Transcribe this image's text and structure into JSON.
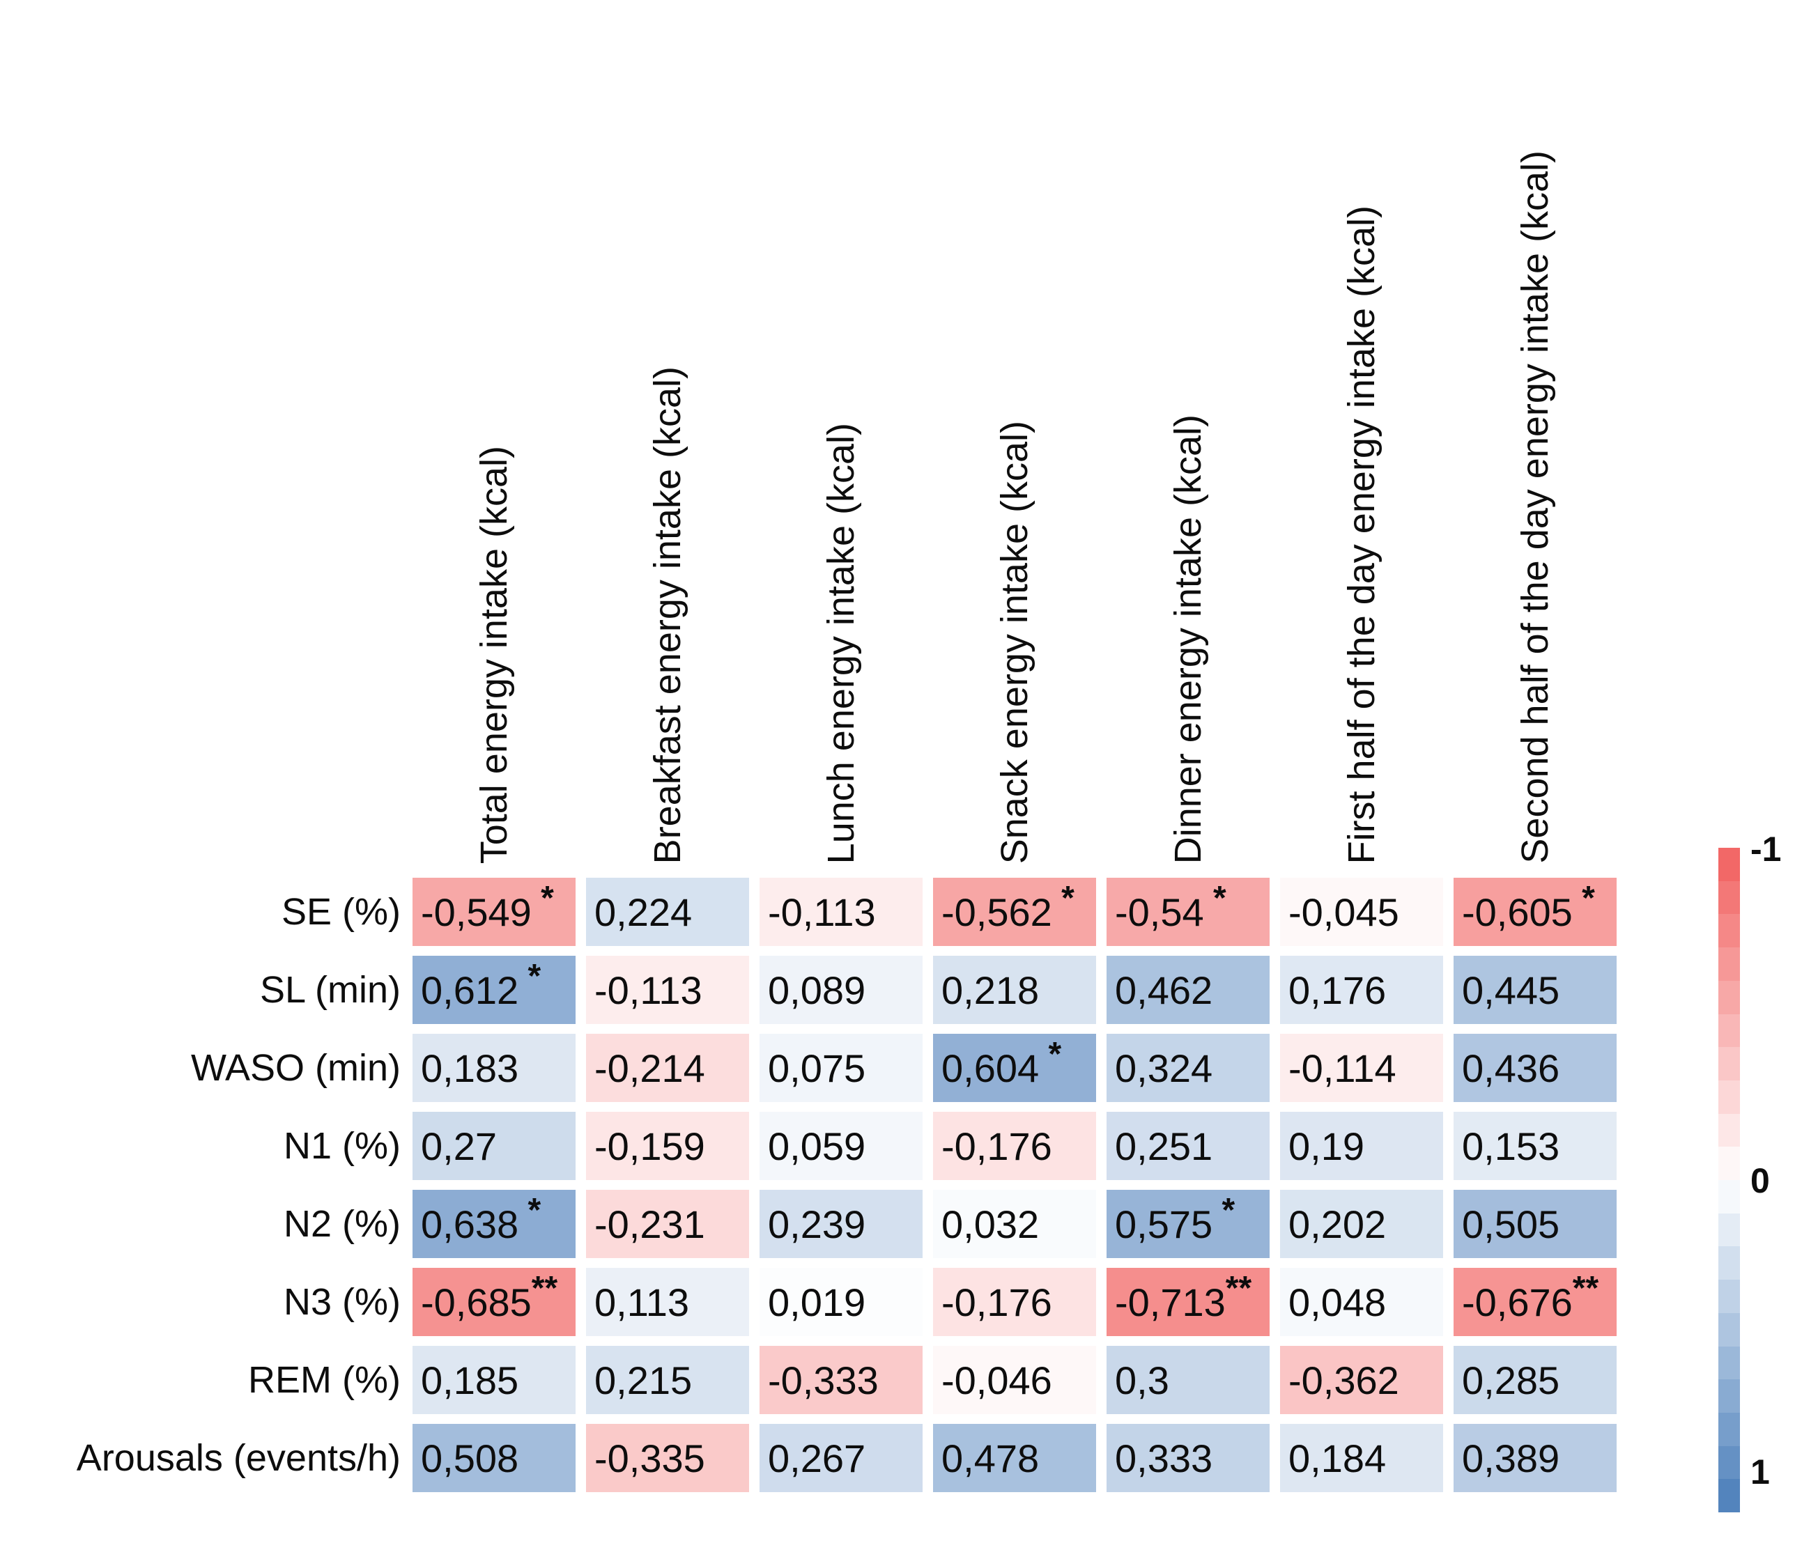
{
  "chart_data": {
    "type": "heatmap",
    "description": "Correlation matrix between sleep parameters (rows) and energy intake variables (columns); red = negative correlation, blue = positive correlation; * and ** mark significant coefficients; decimal comma formatting",
    "columns": [
      "Total energy intake (kcal)",
      "Breakfast energy intake (kcal)",
      "Lunch energy intake (kcal)",
      "Snack energy intake (kcal)",
      "Dinner energy intake (kcal)",
      "First half of the day energy intake (kcal)",
      "Second half of the day energy intake (kcal)"
    ],
    "rows": [
      {
        "label": "SE (%)",
        "values": [
          -0.549,
          0.224,
          -0.113,
          -0.562,
          -0.54,
          -0.045,
          -0.605
        ],
        "stars": [
          " *",
          "",
          "",
          " *",
          " *",
          "",
          " *"
        ]
      },
      {
        "label": "SL (min)",
        "values": [
          0.612,
          -0.113,
          0.089,
          0.218,
          0.462,
          0.176,
          0.445
        ],
        "stars": [
          " *",
          "",
          "",
          "",
          "",
          "",
          ""
        ]
      },
      {
        "label": "WASO (min)",
        "values": [
          0.183,
          -0.214,
          0.075,
          0.604,
          0.324,
          -0.114,
          0.436
        ],
        "stars": [
          "",
          "",
          "",
          " *",
          "",
          "",
          ""
        ]
      },
      {
        "label": "N1 (%)",
        "values": [
          0.27,
          -0.159,
          0.059,
          -0.176,
          0.251,
          0.19,
          0.153
        ],
        "stars": [
          "",
          "",
          "",
          "",
          "",
          "",
          ""
        ]
      },
      {
        "label": "N2 (%)",
        "values": [
          0.638,
          -0.231,
          0.239,
          0.032,
          0.575,
          0.202,
          0.505
        ],
        "stars": [
          " *",
          "",
          "",
          "",
          " *",
          "",
          ""
        ]
      },
      {
        "label": "N3 (%)",
        "values": [
          -0.685,
          0.113,
          0.019,
          -0.176,
          -0.713,
          0.048,
          -0.676
        ],
        "stars": [
          "**",
          "",
          "",
          "",
          "**",
          "",
          "**"
        ]
      },
      {
        "label": "REM (%)",
        "values": [
          0.185,
          0.215,
          -0.333,
          -0.046,
          0.3,
          -0.362,
          0.285
        ],
        "stars": [
          "",
          "",
          "",
          "",
          "",
          "",
          ""
        ]
      },
      {
        "label": "Arousals (events/h)",
        "values": [
          0.508,
          -0.335,
          0.267,
          0.478,
          0.333,
          0.184,
          0.389
        ],
        "stars": [
          "",
          "",
          "",
          "",
          "",
          "",
          ""
        ]
      }
    ],
    "decimal_separator": ",",
    "value_range": [
      -1,
      1
    ],
    "colorbar": {
      "tick_labels": [
        "-1",
        "0",
        "1"
      ],
      "top_value": -1,
      "bottom_value": 1,
      "steps": 20,
      "negative_color": "#f1605f",
      "zero_color": "#ffffff",
      "positive_color": "#4a7dba"
    }
  }
}
